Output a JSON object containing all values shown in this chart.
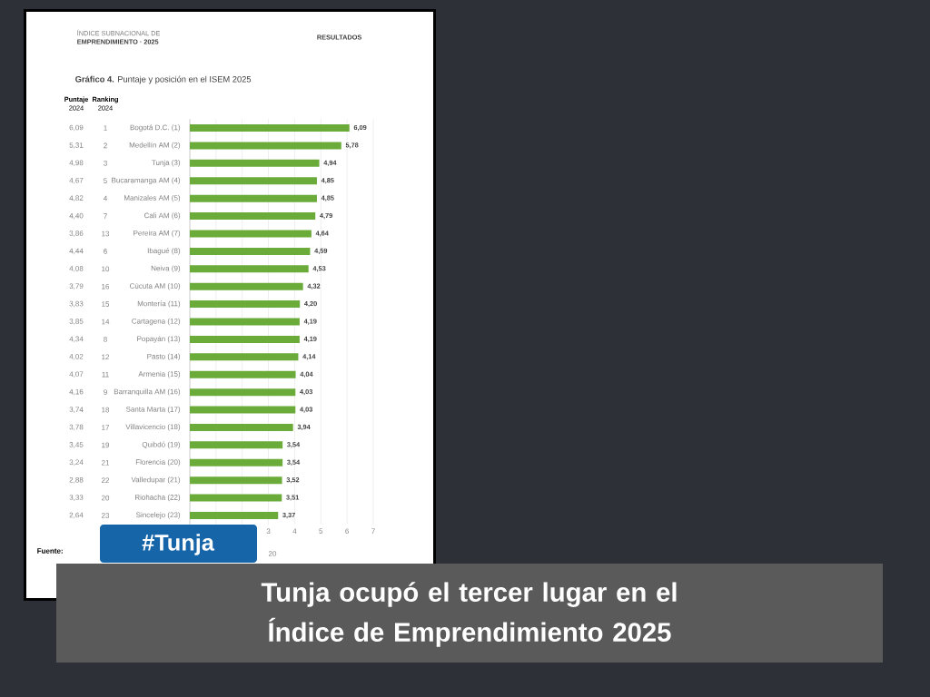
{
  "chart_data": {
    "type": "bar",
    "orientation": "horizontal",
    "title": "**Gráfico 4.** Puntaje y posición en el ISEM 2025",
    "categories": [
      "Bogotá D.C.  (1)",
      "Medellín AM  (2)",
      "Tunja  (3)",
      "Bucaramanga AM  (4)",
      "Manizales AM  (5)",
      "Cali AM  (6)",
      "Pereira AM  (7)",
      "Ibagué  (8)",
      "Neiva  (9)",
      "Cúcuta AM  (10)",
      "Montería  (11)",
      "Cartagena  (12)",
      "Popayán  (13)",
      "Pasto  (14)",
      "Armenia  (15)",
      "Barranquilla AM  (16)",
      "Santa Marta  (17)",
      "Villavicencio  (18)",
      "Quibdó  (19)",
      "Florencia  (20)",
      "Valledupar  (21)",
      "Riohacha  (22)",
      "Sincelejo  (23)"
    ],
    "values": [
      6.09,
      5.78,
      4.94,
      4.85,
      4.85,
      4.79,
      4.64,
      4.59,
      4.53,
      4.32,
      4.2,
      4.19,
      4.19,
      4.14,
      4.04,
      4.03,
      4.03,
      3.94,
      3.54,
      3.54,
      3.52,
      3.51,
      3.37
    ],
    "value_labels": [
      "6,09",
      "5,78",
      "4,94",
      "4,85",
      "4,85",
      "4,79",
      "4,64",
      "4,59",
      "4,53",
      "4,32",
      "4,20",
      "4,19",
      "4,19",
      "4,14",
      "4,04",
      "4,03",
      "4,03",
      "3,94",
      "3,54",
      "3,54",
      "3,52",
      "3,51",
      "3,37"
    ],
    "color": "#6aab3a",
    "xlim": [
      0,
      7
    ],
    "xticks": [
      {
        "value": 0,
        "label": null
      },
      {
        "value": 1,
        "label": null
      },
      {
        "value": 2,
        "label": null
      },
      3,
      4,
      5,
      6,
      7
    ],
    "grid": "x",
    "annotations": [
      "ÍNDICE SUBNACIONAL DE",
      "EMPRENDIMIENTO · 2025",
      "RESULTADOS",
      "Puntaje",
      "2024",
      "Ranking",
      "2024",
      "Fuente:",
      "20",
      "#Tunja",
      "Tunja ocupó el tercer lugar en el Índice de Emprendimiento 2025",
      "6,09",
      "1",
      "5,31",
      "2",
      "4,98",
      "3",
      "4,67",
      "5",
      "4,82",
      "4",
      "4,40",
      "7",
      "3,86",
      "13",
      "4,44",
      "6",
      "4,08",
      "10",
      "3,79",
      "16",
      "3,83",
      "15",
      "3,85",
      "14",
      "4,34",
      "8",
      "4,02",
      "12",
      "4,07",
      "11",
      "4,16",
      "9",
      "3,74",
      "18",
      "3,78",
      "17",
      "3,45",
      "19",
      "3,24",
      "21",
      "2,88",
      "22",
      "3,33",
      "20",
      "2,64",
      "23"
    ]
  }
}
